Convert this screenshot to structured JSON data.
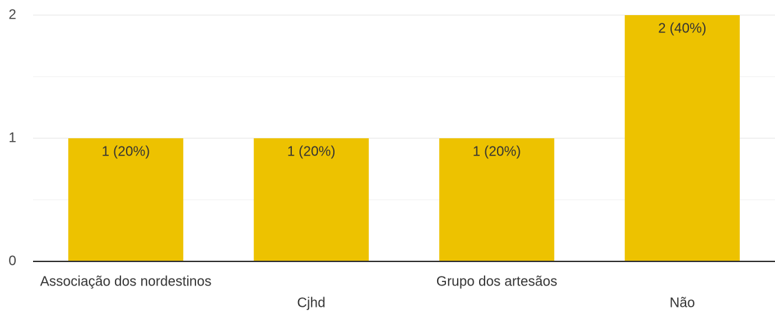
{
  "chart_data": {
    "type": "bar",
    "categories": [
      "Associação dos nordestinos",
      "Cjhd",
      "Grupo dos artesãos",
      "Não"
    ],
    "values": [
      1,
      1,
      1,
      2
    ],
    "value_labels": [
      "1 (20%)",
      "1 (20%)",
      "1 (20%)",
      "2 (40%)"
    ],
    "color": "#edc200",
    "ylim": [
      0,
      2
    ],
    "yticks": [
      0,
      1,
      2
    ],
    "minor_yticks": [
      0.5,
      1.5
    ],
    "grid": true
  }
}
